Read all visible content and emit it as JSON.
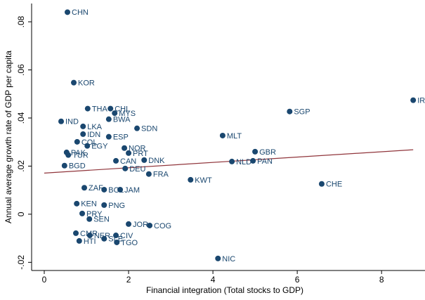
{
  "chart_data": {
    "type": "scatter",
    "xlabel": "Financial integration (Total stocks to GDP)",
    "ylabel": "Annual average growth rate of GDP  per capita",
    "xlim": [
      -0.3,
      9.03
    ],
    "ylim": [
      -0.0234,
      0.0876
    ],
    "xticks": [
      0,
      2,
      4,
      6,
      8
    ],
    "yticks": [
      {
        "value": -0.02,
        "label": "-.02"
      },
      0,
      {
        "value": 0.02,
        "label": ".02"
      },
      {
        "value": 0.04,
        "label": ".04"
      },
      {
        "value": 0.06,
        "label": ".06"
      },
      {
        "value": 0.08,
        "label": ".08"
      }
    ],
    "points": {
      "color": "#1a476f",
      "labels": [
        "CHN",
        "KOR",
        "THA",
        "CHL",
        "MYS",
        "BWA",
        "IND",
        "LKA",
        "SDN",
        "IDN",
        "MLT",
        "SGP",
        "IRL",
        "ESP",
        "NOR",
        "PRT",
        "GBR",
        "NLD",
        "PAN",
        "FRA",
        "KWT",
        "CHE",
        "DNK",
        "DEU",
        "CAN",
        "BGD",
        "PAK",
        "TUR",
        "COL",
        "EGY",
        "JAM",
        "PNG",
        "PRY",
        "SEN",
        "KEN",
        "ZAF",
        "CMR",
        "HTI",
        "NER",
        "CIV",
        "SLE",
        "TGO",
        "JOR",
        "COG",
        "NIC",
        "BOL"
      ],
      "x": [
        0.55,
        0.7,
        1.03,
        1.57,
        1.67,
        1.53,
        0.4,
        0.92,
        2.2,
        0.92,
        4.23,
        5.82,
        8.75,
        1.53,
        1.9,
        2.0,
        5.0,
        4.45,
        4.95,
        2.48,
        3.47,
        6.58,
        2.37,
        1.92,
        1.7,
        0.48,
        0.53,
        0.57,
        0.78,
        1.02,
        1.8,
        1.42,
        0.9,
        1.07,
        0.77,
        0.95,
        0.75,
        0.83,
        1.08,
        1.7,
        1.42,
        1.72,
        2.0,
        2.5,
        4.12,
        1.42
      ],
      "values": [
        0.084,
        0.0547,
        0.0439,
        0.0439,
        0.042,
        0.0395,
        0.0386,
        0.0365,
        0.0357,
        0.0333,
        0.0327,
        0.0427,
        0.0474,
        0.0322,
        0.0275,
        0.0254,
        0.026,
        0.0219,
        0.0222,
        0.0167,
        0.0143,
        0.0126,
        0.0225,
        0.019,
        0.0222,
        0.0202,
        0.0257,
        0.0246,
        0.0301,
        0.0284,
        0.0102,
        0.0038,
        0.0003,
        -0.002,
        0.0044,
        0.011,
        -0.0079,
        -0.0111,
        -0.0088,
        -0.0088,
        -0.0102,
        -0.0117,
        -0.0041,
        -0.0047,
        -0.0184,
        0.0102
      ]
    },
    "fit": {
      "color": "#90353b",
      "x": [
        0,
        8.75
      ],
      "values": [
        0.0171,
        0.0268
      ]
    }
  }
}
